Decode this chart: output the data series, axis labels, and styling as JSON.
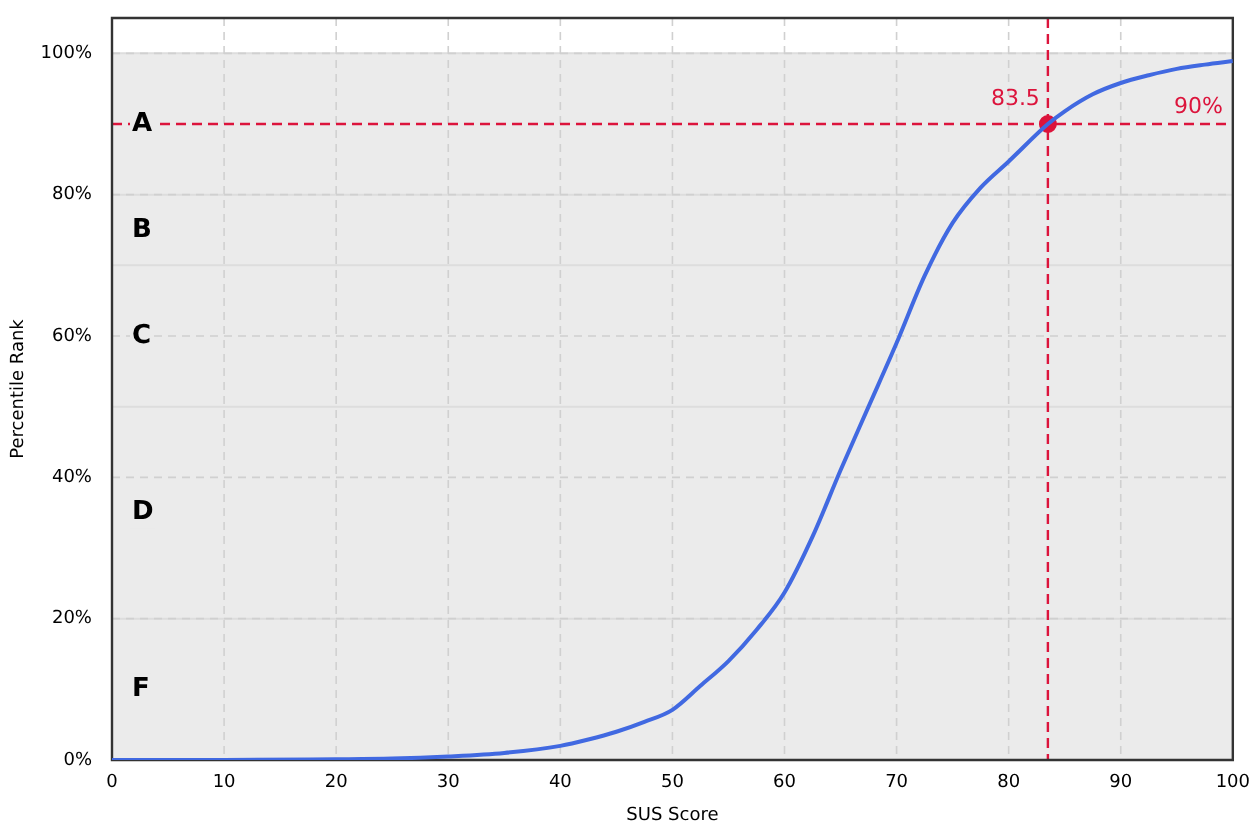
{
  "chart_data": {
    "type": "line",
    "xlabel": "SUS Score",
    "ylabel": "Percentile Rank",
    "x": [
      0,
      10,
      20,
      25,
      30,
      35,
      40,
      42.5,
      45,
      47.5,
      50,
      52.5,
      55,
      57.5,
      60,
      62.5,
      65,
      67.5,
      70,
      72.5,
      75,
      77.5,
      80,
      83.5,
      85,
      87.5,
      90,
      92.5,
      95,
      97.5,
      100
    ],
    "series": [
      {
        "color": "#4169e1",
        "values": [
          0,
          0,
          0.1,
          0.2,
          0.5,
          1,
          2,
          2.9,
          4,
          5.4,
          7.1,
          10.5,
          14,
          18.4,
          23.7,
          31.6,
          41,
          50,
          59,
          68.5,
          76,
          81,
          84.7,
          90,
          91.8,
          94.2,
          95.8,
          96.9,
          97.8,
          98.4,
          98.9
        ]
      },
      {
        "type": "scatter",
        "color": "#dc143c",
        "x": [
          83.5
        ],
        "values": [
          90
        ]
      }
    ],
    "xlim": [
      0,
      100
    ],
    "xticks": [
      0,
      10,
      20,
      30,
      40,
      50,
      60,
      70,
      80,
      90,
      100
    ],
    "ylim": [
      0,
      105
    ],
    "yticks": [
      {
        "value": 0,
        "label": "0%"
      },
      {
        "value": 20,
        "label": "20%"
      },
      {
        "value": 40,
        "label": "40%"
      },
      {
        "value": 60,
        "label": "60%"
      },
      {
        "value": 80,
        "label": "80%"
      },
      {
        "value": 100,
        "label": "100%"
      }
    ],
    "grid": true,
    "bands": [
      {
        "axis": "y",
        "from": 80,
        "to": 100,
        "label": "A",
        "color": "#ebebeb"
      },
      {
        "axis": "y",
        "from": 70,
        "to": 80,
        "label": "B",
        "color": "#ebebeb"
      },
      {
        "axis": "y",
        "from": 50,
        "to": 70,
        "label": "C",
        "color": "#ebebeb"
      },
      {
        "axis": "y",
        "from": 20,
        "to": 50,
        "label": "D",
        "color": "#ebebeb"
      },
      {
        "axis": "y",
        "from": 0,
        "to": 20,
        "label": "F",
        "color": "#ebebeb"
      }
    ],
    "ref_lines": [
      {
        "axis": "x",
        "value": 83.5,
        "label": "83.5",
        "color": "#dc143c",
        "line_style": "dashed"
      },
      {
        "axis": "y",
        "value": 90,
        "label": "90%",
        "color": "#dc143c",
        "line_style": "dashed"
      }
    ]
  }
}
